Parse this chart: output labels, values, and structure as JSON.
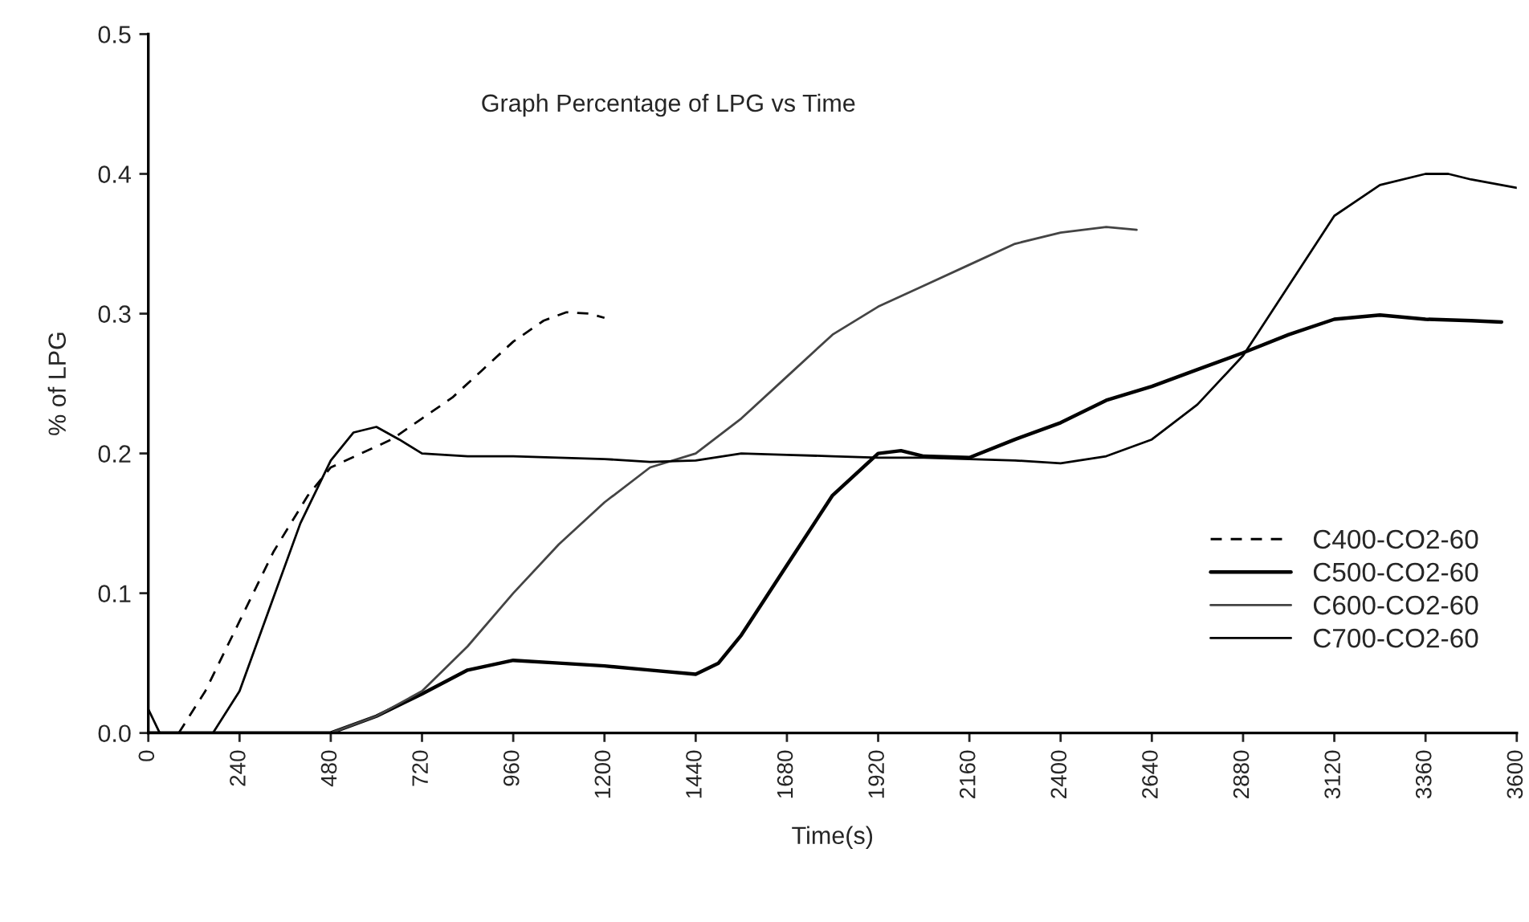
{
  "chart_data": {
    "type": "line",
    "title": "Graph Percentage of LPG vs Time",
    "xlabel": "Time(s)",
    "ylabel": "% of LPG",
    "xlim": [
      0,
      3600
    ],
    "xticks": [
      0,
      240,
      480,
      720,
      960,
      1200,
      1440,
      1680,
      1920,
      2160,
      2400,
      2640,
      2880,
      3120,
      3360,
      3600
    ],
    "ylim": [
      0,
      0.5
    ],
    "yticks": [
      {
        "value": 0,
        "label": "0.0"
      },
      0.1,
      0.2,
      0.3,
      0.4,
      0.5
    ],
    "grid": false,
    "legend": "bottom right",
    "marker": "none",
    "series": [
      {
        "name": "C400-CO2-60",
        "color": "#000000",
        "line_style": "dashed",
        "x": [
          80,
          150,
          240,
          330,
          420,
          480,
          560,
          640,
          720,
          800,
          880,
          960,
          1040,
          1100,
          1160,
          1200
        ],
        "values": [
          0,
          0.03,
          0.08,
          0.13,
          0.17,
          0.19,
          0.2,
          0.21,
          0.225,
          0.24,
          0.26,
          0.28,
          0.295,
          0.301,
          0.3,
          0.297
        ]
      },
      {
        "name": "C500-CO2-60",
        "color": "#000000",
        "line_style": "solid",
        "x": [
          0,
          480,
          600,
          720,
          840,
          960,
          1080,
          1200,
          1320,
          1440,
          1500,
          1560,
          1680,
          1800,
          1920,
          1980,
          2040,
          2160,
          2280,
          2400,
          2520,
          2640,
          2760,
          2880,
          3000,
          3120,
          3240,
          3360,
          3480,
          3560
        ],
        "values": [
          0,
          0,
          0.012,
          0.028,
          0.045,
          0.052,
          0.05,
          0.048,
          0.045,
          0.042,
          0.05,
          0.07,
          0.12,
          0.17,
          0.2,
          0.202,
          0.198,
          0.197,
          0.21,
          0.222,
          0.238,
          0.248,
          0.26,
          0.272,
          0.285,
          0.296,
          0.299,
          0.296,
          0.295,
          0.294
        ]
      },
      {
        "name": "C600-CO2-60",
        "color": "#444444",
        "line_style": "solid",
        "x": [
          0,
          480,
          600,
          720,
          840,
          960,
          1080,
          1200,
          1320,
          1440,
          1560,
          1680,
          1800,
          1920,
          2040,
          2160,
          2280,
          2400,
          2520,
          2600
        ],
        "values": [
          0,
          0,
          0.012,
          0.03,
          0.062,
          0.1,
          0.135,
          0.165,
          0.19,
          0.2,
          0.225,
          0.255,
          0.285,
          0.305,
          0.32,
          0.335,
          0.35,
          0.358,
          0.362,
          0.36
        ]
      },
      {
        "name": "C700-CO2-60",
        "color": "#000000",
        "line_style": "solid",
        "x": [
          0,
          30,
          170,
          240,
          320,
          400,
          480,
          540,
          600,
          660,
          720,
          840,
          960,
          1080,
          1200,
          1320,
          1440,
          1560,
          1680,
          1800,
          1920,
          2040,
          2160,
          2280,
          2400,
          2520,
          2640,
          2760,
          2880,
          3000,
          3120,
          3240,
          3360,
          3420,
          3480,
          3600
        ],
        "values": [
          0.017,
          0,
          0,
          0.03,
          0.09,
          0.15,
          0.195,
          0.215,
          0.219,
          0.21,
          0.2,
          0.198,
          0.198,
          0.197,
          0.196,
          0.194,
          0.195,
          0.2,
          0.199,
          0.198,
          0.197,
          0.197,
          0.196,
          0.195,
          0.193,
          0.198,
          0.21,
          0.235,
          0.27,
          0.32,
          0.37,
          0.392,
          0.4,
          0.4,
          0.396,
          0.39
        ]
      }
    ]
  }
}
